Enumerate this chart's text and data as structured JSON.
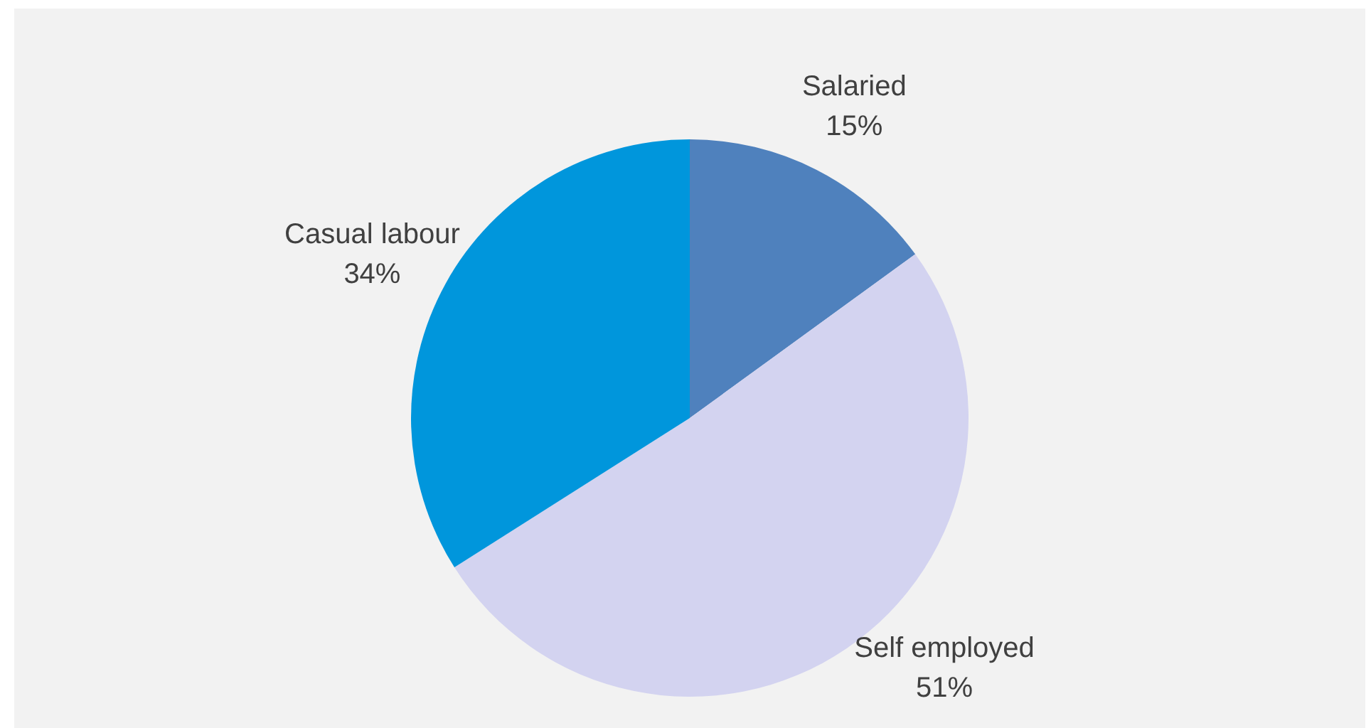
{
  "chart_data": {
    "type": "pie",
    "categories": [
      "Salaried",
      "Self employed",
      "Casual labour"
    ],
    "values": [
      15,
      51,
      34
    ],
    "value_labels": [
      "15%",
      "51%",
      "34%"
    ],
    "colors": [
      "#4f81bd",
      "#d3d3f0",
      "#0096dc"
    ],
    "legend": false
  }
}
